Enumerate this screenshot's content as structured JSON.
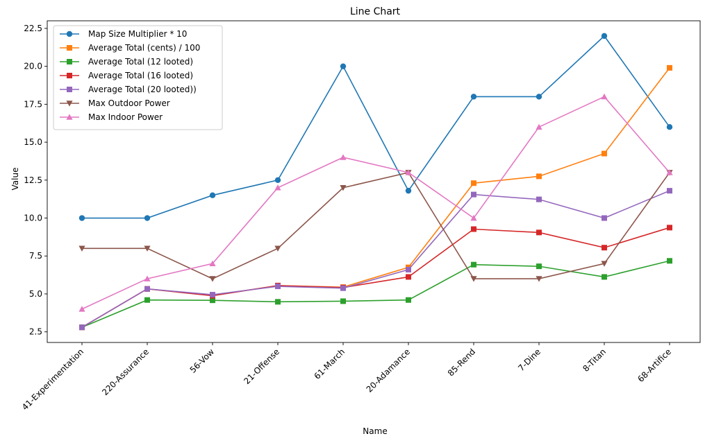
{
  "chart_data": {
    "type": "line",
    "title": "Line Chart",
    "xlabel": "Name",
    "ylabel": "Value",
    "categories": [
      "41-Experimentation",
      "220-Assurance",
      "56-Vow",
      "21-Offense",
      "61-March",
      "20-Adamance",
      "85-Rend",
      "7-Dine",
      "8-Titan",
      "68-Artifice"
    ],
    "ylim": [
      1.8,
      23.0
    ],
    "yticks": [
      2.5,
      5.0,
      7.5,
      10.0,
      12.5,
      15.0,
      17.5,
      20.0,
      22.5
    ],
    "ytick_labels": [
      "2.5",
      "5.0",
      "7.5",
      "10.0",
      "12.5",
      "15.0",
      "17.5",
      "20.0",
      "22.5"
    ],
    "grid": false,
    "legend_position": "top-left",
    "series": [
      {
        "name": "Map Size Multiplier * 10",
        "color": "#1f77b4",
        "marker": "circle",
        "values": [
          10.0,
          10.0,
          11.5,
          12.5,
          20.0,
          11.8,
          18.0,
          18.0,
          22.0,
          16.0
        ]
      },
      {
        "name": "Average Total (cents) / 100",
        "color": "#ff7f0e",
        "marker": "square",
        "values": [
          2.8,
          5.33,
          4.9,
          5.55,
          5.45,
          6.75,
          12.3,
          12.75,
          14.25,
          19.9
        ]
      },
      {
        "name": "Average Total (12 looted)",
        "color": "#2ca02c",
        "marker": "square",
        "values": [
          2.8,
          4.6,
          4.58,
          4.48,
          4.52,
          4.6,
          6.93,
          6.82,
          6.12,
          7.18
        ]
      },
      {
        "name": "Average Total (16 looted)",
        "color": "#d62728",
        "marker": "square",
        "values": [
          2.8,
          5.33,
          4.88,
          5.55,
          5.42,
          6.12,
          9.27,
          9.05,
          8.05,
          9.37
        ]
      },
      {
        "name": "Average Total (20 looted))",
        "color": "#9467bd",
        "marker": "square",
        "values": [
          2.8,
          5.33,
          4.95,
          5.5,
          5.38,
          6.6,
          11.55,
          11.23,
          10.0,
          11.8
        ]
      },
      {
        "name": "Max Outdoor Power",
        "color": "#8c564b",
        "marker": "triangle-down",
        "values": [
          8.0,
          8.0,
          6.0,
          8.0,
          12.0,
          13.0,
          6.0,
          6.0,
          7.0,
          13.0
        ]
      },
      {
        "name": "Max Indoor Power",
        "color": "#e377c2",
        "marker": "triangle-up",
        "values": [
          4.0,
          6.0,
          7.0,
          12.0,
          14.0,
          13.0,
          10.0,
          16.0,
          18.0,
          13.0
        ]
      }
    ]
  }
}
